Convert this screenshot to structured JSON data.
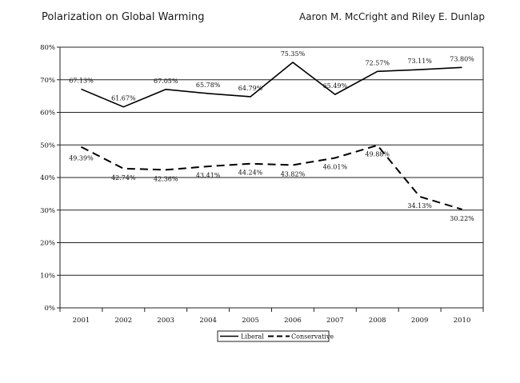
{
  "header": {
    "title": "Polarization on Global Warming",
    "authors": "Aaron M. McCright and Riley E. Dunlap"
  },
  "chart_data": {
    "type": "line",
    "title": "Polarization on Global Warming",
    "x": [
      "2001",
      "2002",
      "2003",
      "2004",
      "2005",
      "2006",
      "2007",
      "2008",
      "2009",
      "2010"
    ],
    "yticks": [
      "0%",
      "10%",
      "20%",
      "30%",
      "40%",
      "50%",
      "60%",
      "70%",
      "80%"
    ],
    "ylim": [
      0,
      80
    ],
    "grid": true,
    "legend": "bottom-center",
    "series": [
      {
        "name": "Liberal",
        "style": "solid",
        "color": "#000000",
        "values": [
          67.13,
          61.67,
          67.05,
          65.78,
          64.79,
          75.35,
          65.49,
          72.57,
          73.11,
          73.8
        ],
        "labels": [
          "67.13%",
          "61.67%",
          "67.05%",
          "65.78%",
          "64.79%",
          "75.35%",
          "65.49%",
          "72.57%",
          "73.11%",
          "73.80%"
        ]
      },
      {
        "name": "Conservative",
        "style": "dashed",
        "color": "#000000",
        "values": [
          49.39,
          42.74,
          42.36,
          43.41,
          44.24,
          43.82,
          46.01,
          49.88,
          34.13,
          30.22
        ],
        "labels": [
          "49.39%",
          "42.74%",
          "42.36%",
          "43.41%",
          "44.24%",
          "43.82%",
          "46.01%",
          "49.88%",
          "34.13%",
          "30.22%"
        ]
      }
    ]
  }
}
